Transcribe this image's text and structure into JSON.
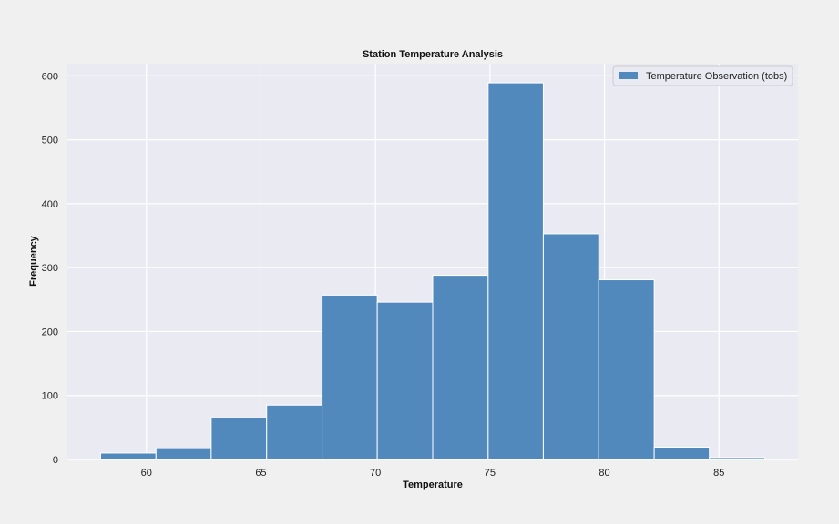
{
  "chart_data": {
    "type": "bar",
    "title": "Station Temperature Analysis",
    "xlabel": "Temperature",
    "ylabel": "Frequency",
    "xlim": [
      56.55,
      88.45
    ],
    "ylim": [
      0,
      619
    ],
    "xticks": [
      60,
      65,
      70,
      75,
      80,
      85
    ],
    "yticks": [
      0,
      100,
      200,
      300,
      400,
      500,
      600
    ],
    "grid": true,
    "legend_position": "top-right",
    "colors": {
      "bar": "#5189bd",
      "bar_edge": "#ffffff",
      "plot_bg": "#eaeaf2",
      "grid": "#ffffff"
    },
    "series": [
      {
        "name": "Temperature Observation (tobs)",
        "bin_edges": [
          58,
          60.42,
          62.83,
          65.25,
          67.67,
          70.08,
          72.5,
          74.92,
          77.33,
          79.75,
          82.17,
          84.58,
          87
        ],
        "values": [
          10,
          17,
          65,
          85,
          257,
          246,
          288,
          589,
          353,
          281,
          19,
          3
        ]
      }
    ]
  }
}
